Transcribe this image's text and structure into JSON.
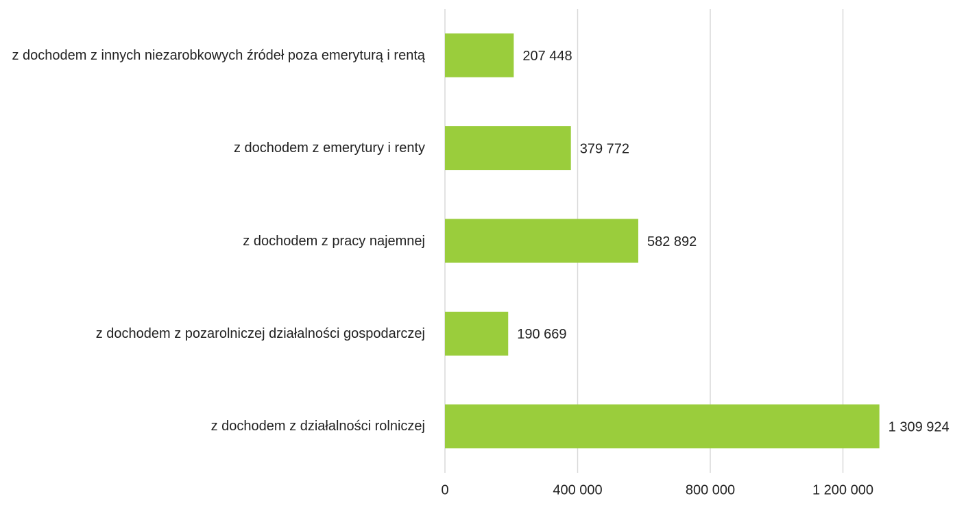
{
  "chart_data": {
    "type": "barh",
    "categories": [
      "z dochodem z innych niezarobkowych źródeł poza emeryturą i rentą",
      "z dochodem z emerytury i renty",
      "z dochodem z pracy najemnej",
      "z dochodem z pozarolniczej działalności gospodarczej",
      "z dochodem z działalności rolniczej"
    ],
    "values": [
      207448,
      379772,
      582892,
      190669,
      1309924
    ],
    "value_labels": [
      "207 448",
      "379 772",
      "582 892",
      "190 669",
      "1 309 924"
    ],
    "color": "#9acd3c",
    "xlim": [
      0,
      1400000
    ],
    "xticks": [
      0,
      {
        "value": 400000,
        "label": "400 000"
      },
      {
        "value": 800000,
        "label": "800 000"
      },
      {
        "value": 1200000,
        "label": "1 200 000"
      }
    ],
    "grid": true
  }
}
